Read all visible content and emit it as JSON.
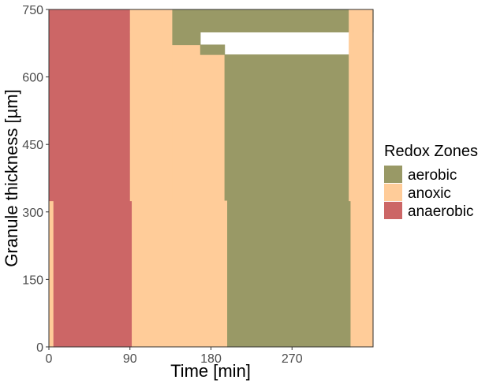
{
  "chart_data": {
    "type": "heatmap",
    "xlabel": "Time [min]",
    "ylabel": "Granule thickness [µm]",
    "xlim": [
      0,
      360
    ],
    "ylim": [
      0,
      750
    ],
    "x_ticks": [
      0,
      90,
      180,
      270
    ],
    "y_ticks": [
      0,
      150,
      300,
      450,
      600,
      750
    ],
    "legend": {
      "title": "Redox Zones",
      "placement": "right",
      "entries": [
        {
          "label": "aerobic",
          "color": "#999966"
        },
        {
          "label": "anoxic",
          "color": "#ffcc99"
        },
        {
          "label": "anaerobic",
          "color": "#cc6666"
        }
      ]
    },
    "zones": [
      {
        "zone": "anoxic",
        "x": [
          0,
          5
        ],
        "y": [
          0,
          325
        ]
      },
      {
        "zone": "anaerobic",
        "x": [
          0,
          90
        ],
        "y": [
          325,
          750
        ]
      },
      {
        "zone": "anaerobic",
        "x": [
          5,
          92
        ],
        "y": [
          0,
          325
        ]
      },
      {
        "zone": "anoxic",
        "x": [
          90,
          137
        ],
        "y": [
          700,
          750
        ]
      },
      {
        "zone": "aerobic",
        "x": [
          137,
          360
        ],
        "y": [
          700,
          750
        ]
      },
      {
        "zone": "anoxic",
        "x": [
          90,
          137
        ],
        "y": [
          325,
          700
        ]
      },
      {
        "zone": "anoxic",
        "x": [
          137,
          168
        ],
        "y": [
          325,
          672
        ]
      },
      {
        "zone": "aerobic",
        "x": [
          137,
          168
        ],
        "y": [
          672,
          700
        ]
      },
      {
        "zone": "anoxic",
        "x": [
          168,
          195
        ],
        "y": [
          325,
          650
        ]
      },
      {
        "zone": "aerobic",
        "x": [
          168,
          195
        ],
        "y": [
          650,
          672
        ]
      },
      {
        "zone": "aerobic",
        "x": [
          195,
          333
        ],
        "y": [
          325,
          650
        ]
      },
      {
        "zone": "anoxic",
        "x": [
          92,
          198
        ],
        "y": [
          0,
          325
        ]
      },
      {
        "zone": "aerobic",
        "x": [
          198,
          335
        ],
        "y": [
          0,
          325
        ]
      },
      {
        "zone": "anoxic",
        "x": [
          333,
          360
        ],
        "y": [
          325,
          750
        ]
      },
      {
        "zone": "anoxic",
        "x": [
          335,
          360
        ],
        "y": [
          0,
          325
        ]
      }
    ]
  }
}
